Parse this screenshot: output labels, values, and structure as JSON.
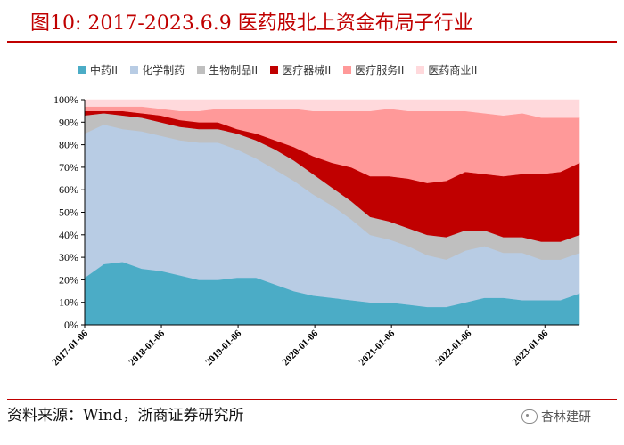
{
  "figure": {
    "title": "图10:  2017-2023.6.9 医药股北上资金布局子行业",
    "source": "资料来源：Wind，浙商证券研究所",
    "watermark": "杏林建研"
  },
  "chart_data": {
    "type": "area",
    "stacked": true,
    "title": "",
    "xlabel": "",
    "ylabel": "",
    "ylim": [
      0,
      100
    ],
    "y_ticks": [
      "0%",
      "10%",
      "20%",
      "30%",
      "40%",
      "50%",
      "60%",
      "70%",
      "80%",
      "90%",
      "100%"
    ],
    "x_ticks": [
      "2017-01-06",
      "2018-01-06",
      "2019-01-06",
      "2020-01-06",
      "2021-01-06",
      "2022-01-06",
      "2023-01-06"
    ],
    "legend_position": "top",
    "x": [
      "2017-01",
      "2017-04",
      "2017-07",
      "2017-10",
      "2018-01",
      "2018-04",
      "2018-07",
      "2018-10",
      "2019-01",
      "2019-04",
      "2019-07",
      "2019-10",
      "2020-01",
      "2020-04",
      "2020-07",
      "2020-10",
      "2021-01",
      "2021-04",
      "2021-07",
      "2021-10",
      "2022-01",
      "2022-04",
      "2022-07",
      "2022-10",
      "2023-01",
      "2023-04",
      "2023-06"
    ],
    "series": [
      {
        "name": "中药II",
        "color": "#4bacc6",
        "values": [
          21,
          27,
          28,
          25,
          24,
          22,
          20,
          20,
          21,
          21,
          18,
          15,
          13,
          12,
          11,
          10,
          10,
          9,
          8,
          8,
          10,
          12,
          12,
          11,
          11,
          11,
          14
        ]
      },
      {
        "name": "化学制药",
        "color": "#b8cce4",
        "values": [
          64,
          62,
          59,
          61,
          60,
          60,
          61,
          61,
          57,
          53,
          51,
          49,
          45,
          41,
          36,
          30,
          28,
          26,
          23,
          21,
          23,
          23,
          20,
          21,
          18,
          18,
          18
        ]
      },
      {
        "name": "生物制品II",
        "color": "#bfbfbf",
        "values": [
          8,
          5,
          6,
          6,
          6,
          6,
          6,
          6,
          7,
          8,
          9,
          9,
          9,
          8,
          8,
          8,
          8,
          8,
          9,
          10,
          9,
          7,
          7,
          7,
          8,
          8,
          8
        ]
      },
      {
        "name": "医疗器械II",
        "color": "#c00000",
        "values": [
          2,
          1,
          2,
          2,
          3,
          3,
          3,
          3,
          2,
          3,
          4,
          6,
          8,
          11,
          15,
          18,
          20,
          22,
          23,
          25,
          26,
          25,
          27,
          28,
          30,
          31,
          32
        ]
      },
      {
        "name": "医疗服务II",
        "color": "#ff9999",
        "values": [
          2,
          2,
          2,
          3,
          3,
          4,
          5,
          6,
          9,
          11,
          14,
          17,
          20,
          23,
          25,
          29,
          30,
          30,
          32,
          31,
          27,
          27,
          27,
          27,
          25,
          24,
          20
        ]
      },
      {
        "name": "医药商业II",
        "color": "#ffd9dc",
        "values": [
          3,
          3,
          3,
          3,
          4,
          5,
          5,
          4,
          4,
          4,
          4,
          4,
          5,
          5,
          5,
          5,
          4,
          5,
          5,
          5,
          5,
          6,
          7,
          6,
          8,
          8,
          8
        ]
      }
    ]
  }
}
